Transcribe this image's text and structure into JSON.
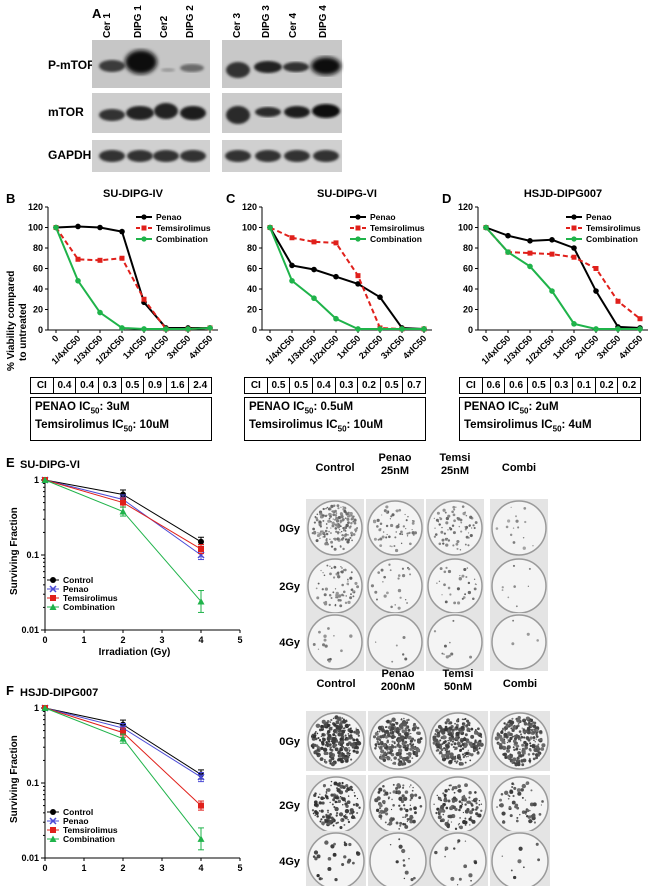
{
  "panel_letters": {
    "A": "A",
    "B": "B",
    "C": "C",
    "D": "D",
    "E": "E",
    "F": "F"
  },
  "blot": {
    "lanes_left": [
      "Cer 1",
      "DIPG 1",
      "Cer2",
      "DIPG 2"
    ],
    "lanes_right": [
      "Cer 3",
      "DIPG 3",
      "Cer 4",
      "DIPG 4"
    ],
    "rows": [
      "P-mTOR",
      "mTOR",
      "GAPDH"
    ]
  },
  "viability": {
    "ylabel_line1": "% Viability compared",
    "ylabel_line2": "to untreated",
    "legend": [
      "Penao",
      "Temsirolimus",
      "Combination"
    ],
    "ci_label": "CI",
    "panels": [
      {
        "title": "SU-DIPG-IV",
        "ci": [
          "0.4",
          "0.4",
          "0.3",
          "0.5",
          "0.9",
          "1.6",
          "2.4"
        ],
        "ic_line1_prefix": "PENAO IC",
        "ic_line1_sub": "50",
        "ic_line1_value": ": 3uM",
        "ic_line2_prefix": "Temsirolimus IC",
        "ic_line2_sub": "50",
        "ic_line2_value": ": 10uM"
      },
      {
        "title": "SU-DIPG-VI",
        "ci": [
          "0.5",
          "0.5",
          "0.4",
          "0.3",
          "0.2",
          "0.5",
          "0.7"
        ],
        "ic_line1_prefix": "PENAO IC",
        "ic_line1_sub": "50",
        "ic_line1_value": ": 0.5uM",
        "ic_line2_prefix": "Temsirolimus IC",
        "ic_line2_sub": "50",
        "ic_line2_value": ": 10uM"
      },
      {
        "title": "HSJD-DIPG007",
        "ci": [
          "0.6",
          "0.6",
          "0.5",
          "0.3",
          "0.1",
          "0.2",
          "0.2"
        ],
        "ic_line1_prefix": "PENAO IC",
        "ic_line1_sub": "50",
        "ic_line1_value": ": 2uM",
        "ic_line2_prefix": "Temsirolimus IC",
        "ic_line2_sub": "50",
        "ic_line2_value": ": 4uM"
      }
    ]
  },
  "survival": {
    "ylabel": "Surviving Fraction",
    "xlabel": "Irradiation (Gy)",
    "legend": [
      "Control",
      "Penao",
      "Temsirolimus",
      "Combination"
    ],
    "panels": [
      {
        "title": "SU-DIPG-VI",
        "plate_cols": [
          "Control",
          "Penao\n25nM",
          "Temsi\n25nM",
          "Combi"
        ],
        "plate_rows": [
          "0Gy",
          "2Gy",
          "4Gy"
        ]
      },
      {
        "title": "HSJD-DIPG007",
        "plate_cols": [
          "Control",
          "Penao\n200nM",
          "Temsi\n50nM",
          "Combi"
        ],
        "plate_rows": [
          "0Gy",
          "2Gy",
          "4Gy"
        ]
      }
    ]
  },
  "chart_data": [
    {
      "type": "line",
      "title": "SU-DIPG-IV",
      "ylabel": "% Viability compared to untreated",
      "ylim": [
        0,
        120
      ],
      "categories": [
        "0",
        "1/4xIC50",
        "1/3xIC50",
        "1/2xIC50",
        "1xIC50",
        "2xIC50",
        "3xIC50",
        "4xIC50"
      ],
      "series": [
        {
          "name": "Penao",
          "values": [
            100,
            101,
            100,
            96,
            27,
            2,
            2,
            2
          ],
          "color": "#000000"
        },
        {
          "name": "Temsirolimus",
          "values": [
            100,
            69,
            68,
            70,
            30,
            1,
            1,
            2
          ],
          "color": "#e0201b"
        },
        {
          "name": "Combination",
          "values": [
            100,
            48,
            17,
            2,
            1,
            1,
            1,
            2
          ],
          "color": "#1fb34a"
        }
      ]
    },
    {
      "type": "line",
      "title": "SU-DIPG-VI",
      "ylim": [
        0,
        120
      ],
      "categories": [
        "0",
        "1/4xIC50",
        "1/3xIC50",
        "1/2xIC50",
        "1xIC50",
        "2xIC50",
        "3xIC50",
        "4xIC50"
      ],
      "series": [
        {
          "name": "Penao",
          "values": [
            100,
            63,
            59,
            52,
            45,
            32,
            2,
            1
          ],
          "color": "#000000"
        },
        {
          "name": "Temsirolimus",
          "values": [
            100,
            90,
            86,
            85,
            53,
            2,
            1,
            1
          ],
          "color": "#e0201b"
        },
        {
          "name": "Combination",
          "values": [
            100,
            48,
            31,
            11,
            1,
            1,
            1,
            1
          ],
          "color": "#1fb34a"
        }
      ]
    },
    {
      "type": "line",
      "title": "HSJD-DIPG007",
      "ylim": [
        0,
        120
      ],
      "categories": [
        "0",
        "1/4xIC50",
        "1/3xIC50",
        "1/2xIC50",
        "1xIC50",
        "2xIC50",
        "3xIC50",
        "4xIC50"
      ],
      "series": [
        {
          "name": "Penao",
          "values": [
            100,
            92,
            87,
            88,
            80,
            38,
            3,
            2
          ],
          "color": "#000000"
        },
        {
          "name": "Temsirolimus",
          "values": [
            100,
            76,
            75,
            74,
            71,
            60,
            28,
            11
          ],
          "color": "#e0201b"
        },
        {
          "name": "Combination",
          "values": [
            100,
            76,
            62,
            38,
            6,
            1,
            1,
            1
          ],
          "color": "#1fb34a"
        }
      ]
    },
    {
      "type": "line",
      "title": "SU-DIPG-VI",
      "xlabel": "Irradiation (Gy)",
      "ylabel": "Surviving Fraction",
      "yscale": "log",
      "ylim": [
        0.01,
        1
      ],
      "xlim": [
        0,
        5
      ],
      "x": [
        0,
        2,
        4
      ],
      "series": [
        {
          "name": "Control",
          "values": [
            1,
            0.64,
            0.15
          ],
          "color": "#000000",
          "marker": "circle"
        },
        {
          "name": "Penao",
          "values": [
            1,
            0.55,
            0.1
          ],
          "color": "#4a4ad6",
          "marker": "x"
        },
        {
          "name": "Temsirolimus",
          "values": [
            1,
            0.5,
            0.12
          ],
          "color": "#e0201b",
          "marker": "square"
        },
        {
          "name": "Combination",
          "values": [
            1,
            0.38,
            0.024
          ],
          "color": "#1fb34a",
          "marker": "triangle"
        }
      ]
    },
    {
      "type": "line",
      "title": "HSJD-DIPG007",
      "xlabel": "Irradiation (Gy)",
      "ylabel": "Surviving Fraction",
      "yscale": "log",
      "ylim": [
        0.01,
        1
      ],
      "xlim": [
        0,
        5
      ],
      "x": [
        0,
        2,
        4
      ],
      "series": [
        {
          "name": "Control",
          "values": [
            1,
            0.6,
            0.13
          ],
          "color": "#000000",
          "marker": "circle"
        },
        {
          "name": "Penao",
          "values": [
            1,
            0.54,
            0.12
          ],
          "color": "#4a4ad6",
          "marker": "x"
        },
        {
          "name": "Temsirolimus",
          "values": [
            1,
            0.47,
            0.05
          ],
          "color": "#e0201b",
          "marker": "square"
        },
        {
          "name": "Combination",
          "values": [
            1,
            0.39,
            0.018
          ],
          "color": "#1fb34a",
          "marker": "triangle"
        }
      ]
    }
  ]
}
